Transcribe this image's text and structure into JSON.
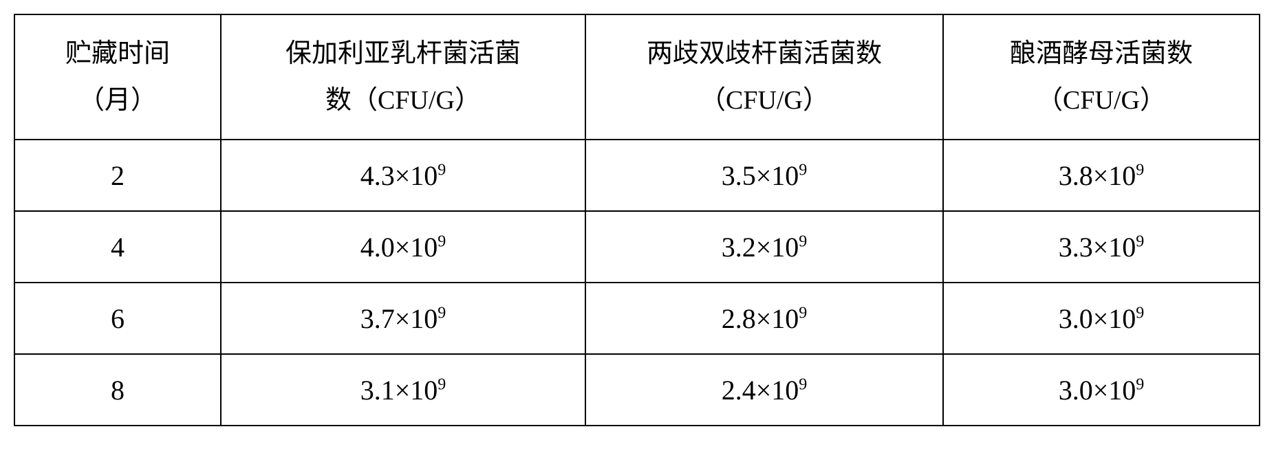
{
  "table": {
    "headers": [
      {
        "line1": "贮藏时间",
        "line2": "（月）"
      },
      {
        "line1": "保加利亚乳杆菌活菌",
        "line2": "数（CFU/G）"
      },
      {
        "line1": "两歧双歧杆菌活菌数",
        "line2": "（CFU/G）"
      },
      {
        "line1": "酿酒酵母活菌数",
        "line2": "（CFU/G）"
      }
    ],
    "rows": [
      {
        "month": "2",
        "v1_base": "4.3",
        "v1_exp": "9",
        "v2_base": "3.5",
        "v2_exp": "9",
        "v3_base": "3.8",
        "v3_exp": "9"
      },
      {
        "month": "4",
        "v1_base": "4.0",
        "v1_exp": "9",
        "v2_base": "3.2",
        "v2_exp": "9",
        "v3_base": "3.3",
        "v3_exp": "9"
      },
      {
        "month": "6",
        "v1_base": "3.7",
        "v1_exp": "9",
        "v2_base": "2.8",
        "v2_exp": "9",
        "v3_base": "3.0",
        "v3_exp": "9"
      },
      {
        "month": "8",
        "v1_base": "3.1",
        "v1_exp": "9",
        "v2_base": "2.4",
        "v2_exp": "9",
        "v3_base": "3.0",
        "v3_exp": "9"
      }
    ],
    "times_symbol": "×10"
  }
}
